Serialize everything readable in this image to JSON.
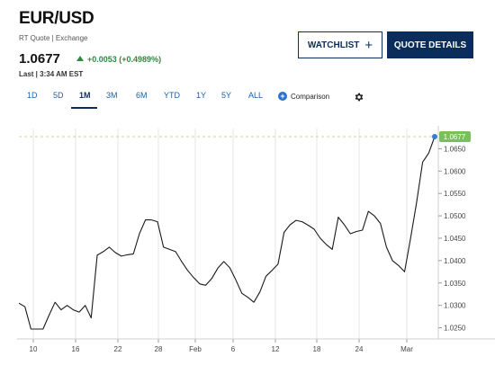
{
  "quote": {
    "symbol": "EUR/USD",
    "subtitle": "RT Quote | Exchange",
    "price": "1.0677",
    "change": "+0.0053 (+0.4989%)",
    "last_time": "Last | 3:34 AM EST"
  },
  "buttons": {
    "watchlist": "WATCHLIST",
    "quote_details": "QUOTE DETAILS"
  },
  "ranges": [
    "1D",
    "5D",
    "1M",
    "3M",
    "6M",
    "YTD",
    "1Y",
    "5Y",
    "ALL"
  ],
  "active_range": "1M",
  "comparison_label": "Comparison",
  "icons": {
    "add_comparison": "plus-circle-icon",
    "settings": "gear-icon",
    "watchlist_add": "plus-icon",
    "change_direction": "triangle-up-icon"
  },
  "colors": {
    "navy": "#0b2d5b",
    "positive": "#2b8a3e",
    "link": "#1a5fa8",
    "price_tag": "#7bbf5b",
    "line": "#1a1a1a"
  },
  "chart_data": {
    "type": "line",
    "title": "",
    "xlabel": "",
    "ylabel": "",
    "x_tick_labels": [
      "10",
      "16",
      "22",
      "28",
      "Feb",
      "6",
      "12",
      "18",
      "24",
      "Mar"
    ],
    "y_tick_labels": [
      "1.0650",
      "1.0600",
      "1.0550",
      "1.0500",
      "1.0450",
      "1.0400",
      "1.0350",
      "1.0300",
      "1.0250"
    ],
    "ylim": [
      1.0225,
      1.0695
    ],
    "grid": "vertical",
    "current_price_label": "1.0677",
    "series": [
      {
        "values": [
          1.0305,
          1.0297,
          1.0247,
          1.0247,
          1.0247,
          1.0278,
          1.0307,
          1.029,
          1.03,
          1.029,
          1.0285,
          1.03,
          1.0272,
          1.0412,
          1.042,
          1.043,
          1.0418,
          1.041,
          1.0413,
          1.0415,
          1.046,
          1.0491,
          1.0491,
          1.0487,
          1.043,
          1.0425,
          1.042,
          1.0398,
          1.0378,
          1.0362,
          1.0348,
          1.0345,
          1.036,
          1.0383,
          1.0398,
          1.0384,
          1.0357,
          1.0327,
          1.0318,
          1.0307,
          1.033,
          1.0365,
          1.0378,
          1.0392,
          1.0463,
          1.048,
          1.049,
          1.0487,
          1.0479,
          1.047,
          1.045,
          1.0436,
          1.0425,
          1.0497,
          1.048,
          1.046,
          1.0465,
          1.0468,
          1.051,
          1.05,
          1.0483,
          1.043,
          1.04,
          1.0389,
          1.0375,
          1.045,
          1.053,
          1.062,
          1.064,
          1.0677
        ]
      }
    ]
  }
}
